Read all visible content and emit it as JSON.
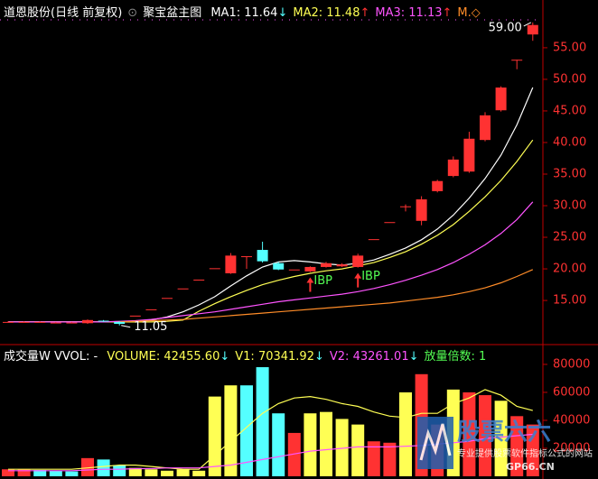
{
  "header": {
    "stock": "道恩股份(日线 前复权)",
    "indicator": "聚宝盆主图"
  },
  "chart_data": [
    {
      "type": "candlestick",
      "open": [
        11.6,
        11.6,
        11.6,
        11.5,
        11.5,
        11.4,
        11.8,
        11.6,
        12.6,
        13.6,
        15.4,
        16.9,
        18.3,
        20.1,
        19.3,
        22,
        23,
        20.9,
        19.9,
        19.6,
        20.3,
        20.4,
        20.3,
        24.7,
        27.4,
        29.9,
        27.6,
        32.3,
        34.7,
        35.4,
        40.4,
        45.1,
        53.1,
        57.1
      ],
      "high": [
        11.7,
        11.7,
        11.7,
        11.6,
        11.6,
        12,
        11.9,
        11.7,
        12.6,
        13.6,
        15.4,
        16.9,
        18.3,
        20.1,
        22.5,
        22,
        24.3,
        21.1,
        19.9,
        20.4,
        21.1,
        20.9,
        22.4,
        24.7,
        27.4,
        30.2,
        31.5,
        34.1,
        37.8,
        41.7,
        44.8,
        48.9,
        53.1,
        59
      ],
      "low": [
        11.5,
        11.5,
        11.5,
        11.4,
        11.4,
        11.3,
        11.6,
        11.05,
        12.6,
        13.6,
        15.4,
        16.9,
        18.3,
        20.1,
        19.2,
        20,
        21,
        19.8,
        19.9,
        19.5,
        20.2,
        20.3,
        20.2,
        24.7,
        27.4,
        29.1,
        26.9,
        32.1,
        34.5,
        35.2,
        40.2,
        44.9,
        51.6,
        56.1
      ],
      "close": [
        11.6,
        11.6,
        11.6,
        11.5,
        11.5,
        11.9,
        11.7,
        11.3,
        12.6,
        13.6,
        15.4,
        16.9,
        18.3,
        20.1,
        22.1,
        22,
        21.2,
        19.9,
        19.9,
        20.3,
        20.9,
        20.7,
        22.1,
        24.7,
        27.4,
        29.9,
        31,
        33.9,
        37.3,
        40.6,
        44.3,
        48.7,
        53.1,
        58.6
      ],
      "up_color": "#ff3232",
      "down_color": "#54ffff",
      "series": [
        {
          "label": "MA1: 11.64",
          "arrow": "↓",
          "arrow_color": "#54ffff",
          "color": "#ffffff",
          "values": [
            11.6,
            11.6,
            11.6,
            11.6,
            11.6,
            11.6,
            11.6,
            11.6,
            11.7,
            11.9,
            12.4,
            13.2,
            14.3,
            15.6,
            17.3,
            18.9,
            20.3,
            21.1,
            21.3,
            21.1,
            20.8,
            20.6,
            20.9,
            21.4,
            22.3,
            23.3,
            24.6,
            26.3,
            28.5,
            31.2,
            34.3,
            38.0,
            42.8,
            48.7
          ]
        },
        {
          "label": "MA2: 11.48",
          "arrow": "↑",
          "arrow_color": "#ff3232",
          "color": "#ffff54",
          "values": [
            11.6,
            11.6,
            11.6,
            11.6,
            11.6,
            11.6,
            11.6,
            11.6,
            11.6,
            11.6,
            11.7,
            11.9,
            13.3,
            14.5,
            15.6,
            16.6,
            17.5,
            18.2,
            18.8,
            19.3,
            19.7,
            20.0,
            20.5,
            21.0,
            21.8,
            22.7,
            23.9,
            25.3,
            27.0,
            29.1,
            31.4,
            34.0,
            37.0,
            40.4
          ]
        },
        {
          "label": "MA3: 11.13",
          "arrow": "↑",
          "arrow_color": "#ff3232",
          "color": "#ff54ff",
          "values": [
            11.6,
            11.6,
            11.6,
            11.6,
            11.6,
            11.6,
            11.6,
            11.7,
            11.8,
            12.0,
            12.3,
            12.6,
            12.9,
            13.2,
            13.6,
            14.0,
            14.4,
            14.8,
            15.1,
            15.4,
            15.7,
            16.0,
            16.4,
            16.9,
            17.5,
            18.2,
            19.0,
            19.9,
            21.0,
            22.3,
            23.8,
            25.6,
            27.8,
            30.6
          ]
        },
        {
          "label": "M.◇",
          "color": "#ff8c28",
          "values": [
            null,
            null,
            null,
            null,
            null,
            null,
            null,
            11.6,
            11.7,
            11.8,
            11.9,
            12.0,
            12.2,
            12.4,
            12.6,
            12.8,
            13.0,
            13.2,
            13.4,
            13.6,
            13.8,
            14.0,
            14.2,
            14.4,
            14.6,
            14.9,
            15.2,
            15.5,
            15.9,
            16.4,
            17.0,
            17.8,
            18.8,
            19.9
          ]
        }
      ],
      "signals": [
        null,
        null,
        null,
        null,
        null,
        null,
        null,
        null,
        null,
        null,
        null,
        null,
        null,
        null,
        null,
        null,
        null,
        null,
        null,
        "IBP",
        null,
        null,
        "IBP",
        null,
        null,
        null,
        null,
        null,
        null,
        null,
        null,
        null,
        null,
        null
      ],
      "signal_color": "#54ff54",
      "annotations": [
        {
          "value": 59,
          "label": "59.00"
        },
        {
          "value": 11.05,
          "label": "11.05"
        }
      ],
      "ylim": [
        8.3,
        59.7
      ],
      "yticks": [
        {
          "value": 15,
          "label": "15.00"
        },
        {
          "value": 20,
          "label": "20.00"
        },
        {
          "value": 25,
          "label": "25.00"
        },
        {
          "value": 30,
          "label": "30.00"
        },
        {
          "value": 35,
          "label": "35.00"
        },
        {
          "value": 40,
          "label": "40.00"
        },
        {
          "value": 45,
          "label": "45.00"
        },
        {
          "value": 50,
          "label": "50.00"
        },
        {
          "value": 55,
          "label": "55.00"
        }
      ]
    },
    {
      "type": "bar",
      "title": "成交量W VVOL: -",
      "values": [
        5000,
        5000,
        4500,
        4000,
        3500,
        13000,
        12000,
        8000,
        6000,
        5000,
        4000,
        5000,
        4000,
        57000,
        65000,
        65000,
        78000,
        45000,
        31000,
        45000,
        46000,
        41000,
        37000,
        25000,
        24000,
        60000,
        73000,
        37000,
        62000,
        60000,
        58000,
        54000,
        43000,
        37000
      ],
      "colors": [
        "#ff3232",
        "#ff3232",
        "#54ffff",
        "#54ffff",
        "#54ffff",
        "#ff3232",
        "#54ffff",
        "#54ffff",
        "#ffff54",
        "#ffff54",
        "#ffff54",
        "#ffff54",
        "#ffff54",
        "#ffff54",
        "#ffff54",
        "#54ffff",
        "#54ffff",
        "#54ffff",
        "#ff3232",
        "#ffff54",
        "#ffff54",
        "#ffff54",
        "#ffff54",
        "#ff3232",
        "#ff3232",
        "#ffff54",
        "#ff3232",
        "#ff3232",
        "#ffff54",
        "#ff3232",
        "#ff3232",
        "#ffff54",
        "#ff3232",
        "#ff3232"
      ],
      "bar_label": "VOLUME: 42455.60",
      "bar_arrow": "↓",
      "bar_label_color": "#ffff54",
      "arrow_color": "#54ffff",
      "series": [
        {
          "label": "V1: 70341.92",
          "arrow": "↓",
          "color": "#ffff54",
          "values": [
            5000,
            5000,
            5000,
            5000,
            5000,
            6000,
            7000,
            8000,
            8000,
            7000,
            6000,
            5000,
            5000,
            15000,
            25000,
            35000,
            45000,
            52000,
            56000,
            57000,
            55000,
            52000,
            50000,
            46000,
            43000,
            42000,
            45000,
            45000,
            52000,
            56000,
            62000,
            58000,
            50000,
            47000
          ]
        },
        {
          "label": "V2: 43261.01",
          "arrow": "↓",
          "color": "#ff54ff",
          "values": [
            4000,
            4000,
            4000,
            4000,
            4000,
            4500,
            5000,
            5000,
            5500,
            5500,
            6000,
            6000,
            6000,
            7000,
            8000,
            10000,
            12000,
            14000,
            16000,
            18000,
            19000,
            20000,
            21000,
            21000,
            21000,
            21500,
            22000,
            23000,
            24000,
            25000,
            27000,
            28000,
            29000,
            30000
          ]
        }
      ],
      "ratio_label": "放量倍数: 1",
      "ratio_color": "#54ff54",
      "ylim": [
        0,
        93500
      ],
      "yticks": [
        20000,
        40000,
        60000,
        80000
      ]
    }
  ],
  "watermark": {
    "title": "股票六六",
    "subtitle": "专业提供股票软件指标公式的网站",
    "url": "GP66.CN"
  }
}
